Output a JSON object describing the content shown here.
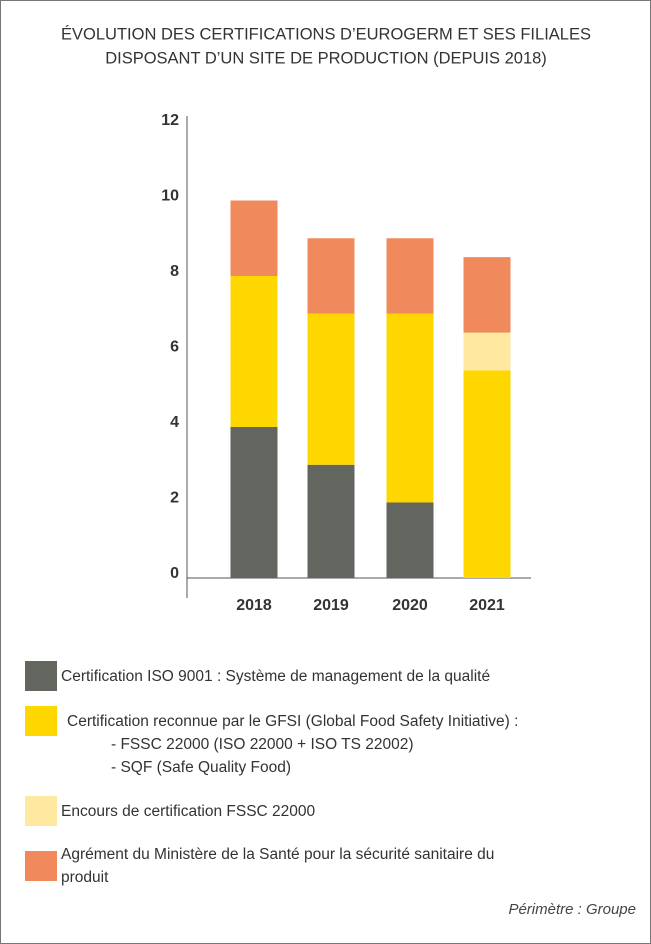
{
  "chart_data": {
    "type": "stacked_bar",
    "title": [
      "ÉVOLUTION DES CERTIFICATIONS D’EUROGERM ET SES FILIALES",
      "DISPOSANT D’UN SITE DE PRODUCTION (DEPUIS 2018)"
    ],
    "categories": [
      "2018",
      "2019",
      "2020",
      "2021"
    ],
    "series": [
      {
        "name": "Certification ISO 9001 : Système de management de la qualité",
        "color": "#63665f",
        "values": [
          4,
          3,
          2,
          0
        ]
      },
      {
        "name": "Certification reconnue par le GFSI (Global Food Safety Initiative) :",
        "details": [
          "- FSSC 22000 (ISO 22000 + ISO TS 22002)",
          "- SQF (Safe Quality Food)"
        ],
        "color": "#ffd700",
        "values": [
          4,
          4,
          5,
          5.5
        ]
      },
      {
        "name": "Encours de certification FSSC 22000",
        "color": "#ffe9a0",
        "values": [
          0,
          0,
          0,
          1
        ]
      },
      {
        "name": "Agrément du Ministère de la Santé pour la sécurité sanitaire du produit",
        "color": "#f08a5d",
        "values": [
          2,
          2,
          2,
          2
        ]
      }
    ],
    "ylim": [
      0,
      12
    ],
    "yticks": [
      0,
      2,
      4,
      6,
      8,
      10,
      12
    ],
    "note": "Périmètre : Groupe"
  }
}
